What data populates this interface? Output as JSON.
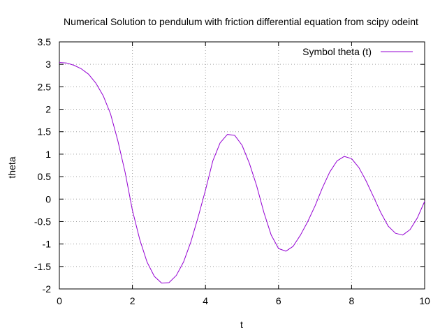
{
  "chart_data": {
    "type": "line",
    "title": "Numerical Solution to pendulum with friction differential equation from scipy odeint",
    "xlabel": "t",
    "ylabel": "theta",
    "xlim": [
      0,
      10
    ],
    "ylim": [
      -2,
      3.5
    ],
    "xticks": [
      0,
      2,
      4,
      6,
      8,
      10
    ],
    "yticks": [
      -2,
      -1.5,
      -1,
      -0.5,
      0,
      0.5,
      1,
      1.5,
      2,
      2.5,
      3,
      3.5
    ],
    "xtick_labels": [
      "0",
      "2",
      "4",
      "6",
      "8",
      "10"
    ],
    "ytick_labels": [
      "-2",
      "-1.5",
      "-1",
      "-0.5",
      "0",
      "0.5",
      "1",
      "1.5",
      "2",
      "2.5",
      "3",
      "3.5"
    ],
    "grid": true,
    "legend_position": "top-right",
    "series": [
      {
        "name": "Symbol theta (t)",
        "color": "#9400d3",
        "x": [
          0,
          0.2,
          0.4,
          0.6,
          0.8,
          1.0,
          1.2,
          1.4,
          1.6,
          1.8,
          2.0,
          2.2,
          2.4,
          2.6,
          2.8,
          3.0,
          3.2,
          3.4,
          3.6,
          3.8,
          4.0,
          4.2,
          4.4,
          4.6,
          4.8,
          5.0,
          5.2,
          5.4,
          5.6,
          5.8,
          6.0,
          6.2,
          6.4,
          6.6,
          6.8,
          7.0,
          7.2,
          7.4,
          7.6,
          7.8,
          8.0,
          8.2,
          8.4,
          8.6,
          8.8,
          9.0,
          9.2,
          9.4,
          9.6,
          9.8,
          10.0
        ],
        "y": [
          3.04,
          3.03,
          2.98,
          2.9,
          2.78,
          2.58,
          2.3,
          1.9,
          1.3,
          0.6,
          -0.25,
          -0.9,
          -1.4,
          -1.72,
          -1.87,
          -1.86,
          -1.7,
          -1.4,
          -0.95,
          -0.4,
          0.2,
          0.85,
          1.25,
          1.44,
          1.42,
          1.2,
          0.8,
          0.3,
          -0.3,
          -0.8,
          -1.1,
          -1.16,
          -1.05,
          -0.8,
          -0.5,
          -0.15,
          0.25,
          0.6,
          0.85,
          0.95,
          0.9,
          0.7,
          0.4,
          0.05,
          -0.3,
          -0.6,
          -0.76,
          -0.8,
          -0.68,
          -0.42,
          -0.05
        ]
      }
    ]
  }
}
